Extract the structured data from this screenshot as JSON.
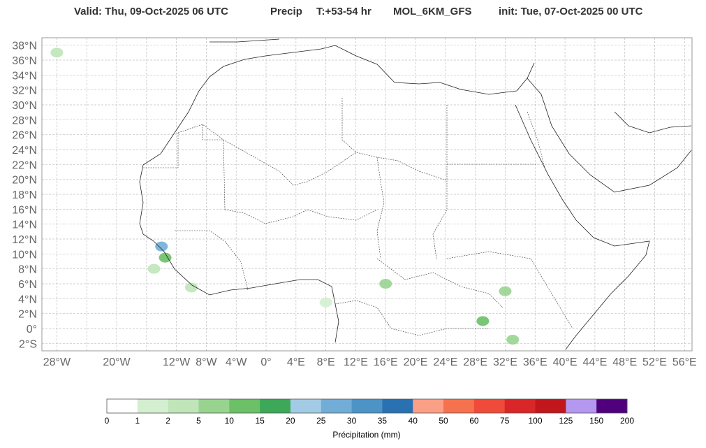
{
  "title": {
    "valid": "Valid: Thu, 09-Oct-2025   06 UTC",
    "field": "Precip",
    "step": "T:+53-54 hr",
    "model": "MOL_6KM_GFS",
    "init": "init: Tue, 07-Oct-2025   00 UTC"
  },
  "map": {
    "lon_range": [
      -30,
      57
    ],
    "lat_range": [
      -3,
      39
    ],
    "lat_ticks": [
      "38°N",
      "36°N",
      "34°N",
      "32°N",
      "30°N",
      "28°N",
      "26°N",
      "24°N",
      "22°N",
      "20°N",
      "18°N",
      "16°N",
      "14°N",
      "12°N",
      "10°N",
      "8°N",
      "6°N",
      "4°N",
      "2°N",
      "0°",
      "2°S"
    ],
    "lat_values": [
      38,
      36,
      34,
      32,
      30,
      28,
      26,
      24,
      22,
      20,
      18,
      16,
      14,
      12,
      10,
      8,
      6,
      4,
      2,
      0,
      -2
    ],
    "lon_ticks": [
      "28°W",
      "20°W",
      "12°W",
      "8°W",
      "4°W",
      "0°",
      "4°E",
      "8°E",
      "12°E",
      "16°E",
      "20°E",
      "24°E",
      "28°E",
      "32°E",
      "36°E",
      "40°E",
      "44°E",
      "48°E",
      "52°E",
      "56°E"
    ],
    "lon_values": [
      -28,
      -20,
      -12,
      -8,
      -4,
      0,
      4,
      8,
      12,
      16,
      20,
      24,
      28,
      32,
      36,
      40,
      44,
      48,
      52,
      56
    ],
    "grid": true
  },
  "precip_areas": [
    {
      "lon": -14,
      "lat": 11.0,
      "level": "20-25 mm"
    },
    {
      "lon": -13.5,
      "lat": 9.5,
      "level": "10-15 mm"
    },
    {
      "lon": -15,
      "lat": 8,
      "level": "2-5 mm"
    },
    {
      "lon": -10,
      "lat": 5.5,
      "level": "2-5 mm"
    },
    {
      "lon": 16,
      "lat": 6,
      "level": "5-10 mm"
    },
    {
      "lon": 32,
      "lat": 5,
      "level": "5-10 mm"
    },
    {
      "lon": 29,
      "lat": 1,
      "level": "10-15 mm"
    },
    {
      "lon": 33,
      "lat": -1.5,
      "level": "5-10 mm"
    },
    {
      "lon": 8,
      "lat": 3.5,
      "level": "1-2 mm"
    },
    {
      "lon": -28,
      "lat": 37,
      "level": "2-5 mm"
    }
  ],
  "colorbar": {
    "label": "Précipitation (mm)",
    "ticks": [
      "0",
      "1",
      "2",
      "5",
      "10",
      "15",
      "20",
      "25",
      "30",
      "35",
      "40",
      "50",
      "60",
      "75",
      "100",
      "125",
      "150",
      "200"
    ],
    "colors": [
      "#ffffff",
      "#d3efd0",
      "#bfe5b9",
      "#98d490",
      "#6cc068",
      "#3ea85a",
      "#a3cbe5",
      "#72add8",
      "#4d94c6",
      "#2a71b1",
      "#fb9f86",
      "#f6724f",
      "#ef4b3b",
      "#d92628",
      "#c1161c",
      "#b497ee",
      "#50007d"
    ]
  }
}
